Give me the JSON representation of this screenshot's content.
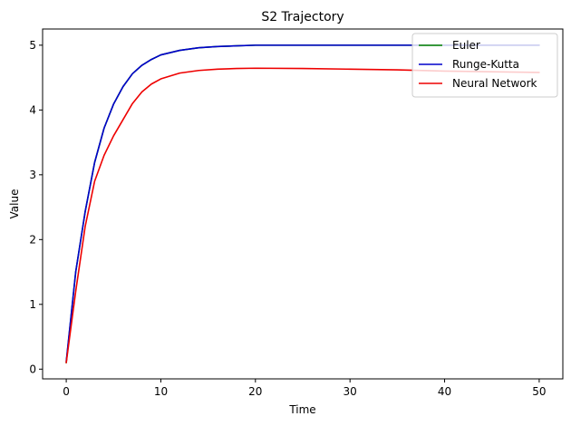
{
  "chart_data": {
    "type": "line",
    "title": "S2 Trajectory",
    "xlabel": "Time",
    "ylabel": "Value",
    "xlim": [
      -2.5,
      52.5
    ],
    "ylim": [
      -0.15,
      5.25
    ],
    "xticks": [
      0,
      10,
      20,
      30,
      40,
      50
    ],
    "yticks": [
      0,
      1,
      2,
      3,
      4,
      5
    ],
    "grid": false,
    "legend_position": "top-right",
    "x": [
      0,
      1,
      2,
      3,
      4,
      5,
      6,
      7,
      8,
      9,
      10,
      12,
      14,
      16,
      18,
      20,
      25,
      30,
      35,
      40,
      45,
      50
    ],
    "series": [
      {
        "name": "Euler",
        "color": "#008000",
        "values": [
          0.1,
          1.5,
          2.43,
          3.19,
          3.72,
          4.09,
          4.36,
          4.56,
          4.69,
          4.78,
          4.85,
          4.92,
          4.96,
          4.98,
          4.99,
          5.0,
          5.0,
          5.0,
          5.0,
          5.0,
          5.0,
          5.0
        ]
      },
      {
        "name": "Runge-Kutta",
        "color": "#0000cc",
        "values": [
          0.12,
          1.5,
          2.43,
          3.19,
          3.72,
          4.09,
          4.36,
          4.56,
          4.69,
          4.78,
          4.85,
          4.92,
          4.96,
          4.98,
          4.99,
          5.0,
          5.0,
          5.0,
          5.0,
          5.0,
          5.0,
          5.0
        ]
      },
      {
        "name": "Neural Network",
        "color": "#ee0000",
        "values": [
          0.1,
          1.2,
          2.2,
          2.9,
          3.3,
          3.6,
          3.85,
          4.1,
          4.28,
          4.4,
          4.48,
          4.57,
          4.61,
          4.63,
          4.64,
          4.645,
          4.64,
          4.63,
          4.62,
          4.6,
          4.59,
          4.58
        ]
      }
    ]
  }
}
